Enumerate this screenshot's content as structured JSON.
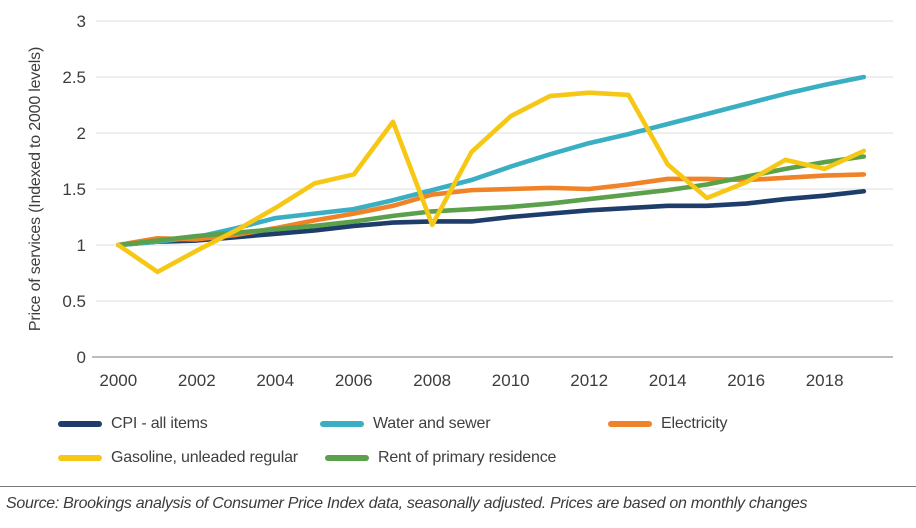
{
  "chart_data": {
    "type": "line",
    "title": "",
    "xlabel": "",
    "ylabel": "Price of services (Indexed to 2000 levels)",
    "ylim": [
      0,
      3
    ],
    "yticks": [
      0,
      0.5,
      1,
      1.5,
      2,
      2.5,
      3
    ],
    "xticks": [
      2000,
      2002,
      2004,
      2006,
      2008,
      2010,
      2012,
      2014,
      2016,
      2018
    ],
    "grid": true,
    "legend_position": "bottom",
    "x": [
      2000,
      2001,
      2002,
      2003,
      2004,
      2005,
      2006,
      2007,
      2008,
      2009,
      2010,
      2011,
      2012,
      2013,
      2014,
      2015,
      2016,
      2017,
      2018,
      2019
    ],
    "series": [
      {
        "name": "CPI - all items",
        "slug": "cpi-all-items",
        "color": "#1e3d6b",
        "values": [
          1.0,
          1.03,
          1.04,
          1.07,
          1.1,
          1.13,
          1.17,
          1.2,
          1.21,
          1.21,
          1.25,
          1.28,
          1.31,
          1.33,
          1.35,
          1.35,
          1.37,
          1.41,
          1.44,
          1.48
        ]
      },
      {
        "name": "Water and sewer",
        "slug": "water-and-sewer",
        "color": "#3aafc3",
        "values": [
          1.0,
          1.03,
          1.07,
          1.15,
          1.24,
          1.28,
          1.32,
          1.4,
          1.49,
          1.58,
          1.7,
          1.81,
          1.91,
          1.99,
          2.08,
          2.17,
          2.26,
          2.35,
          2.43,
          2.5
        ]
      },
      {
        "name": "Electricity",
        "slug": "electricity",
        "color": "#f08228",
        "values": [
          1.0,
          1.06,
          1.05,
          1.09,
          1.15,
          1.22,
          1.28,
          1.35,
          1.45,
          1.49,
          1.5,
          1.51,
          1.5,
          1.54,
          1.59,
          1.59,
          1.58,
          1.6,
          1.62,
          1.63
        ]
      },
      {
        "name": "Rent of primary residence",
        "slug": "rent-of-primary-residence",
        "color": "#5ba14b",
        "values": [
          1.0,
          1.04,
          1.08,
          1.11,
          1.14,
          1.17,
          1.21,
          1.26,
          1.3,
          1.32,
          1.34,
          1.37,
          1.41,
          1.45,
          1.49,
          1.54,
          1.61,
          1.68,
          1.74,
          1.79
        ]
      },
      {
        "name": "Gasoline, unleaded regular",
        "slug": "gasoline-unleaded-regular",
        "color": "#f6c815",
        "values": [
          1.0,
          0.76,
          0.95,
          1.13,
          1.33,
          1.55,
          1.63,
          2.1,
          1.18,
          1.83,
          2.15,
          2.33,
          2.36,
          2.34,
          1.72,
          1.42,
          1.56,
          1.76,
          1.68,
          1.84
        ]
      }
    ]
  },
  "axes": {
    "y_title": "Price of services (Indexed to 2000 levels)"
  },
  "legend": {
    "items": [
      {
        "label": "CPI - all items",
        "color": "#1e3d6b"
      },
      {
        "label": "Water and sewer",
        "color": "#3aafc3"
      },
      {
        "label": "Electricity",
        "color": "#f08228"
      },
      {
        "label": "Gasoline, unleaded regular",
        "color": "#f6c815"
      },
      {
        "label": "Rent of primary residence",
        "color": "#5ba14b"
      }
    ]
  },
  "source_note": "Source: Brookings analysis of Consumer Price Index data, seasonally adjusted. Prices are based on monthly changes",
  "style": {
    "grid_color": "#dcdcdc",
    "axis_color": "#a6a6a6",
    "tick_text_color": "#3d3d3d"
  }
}
